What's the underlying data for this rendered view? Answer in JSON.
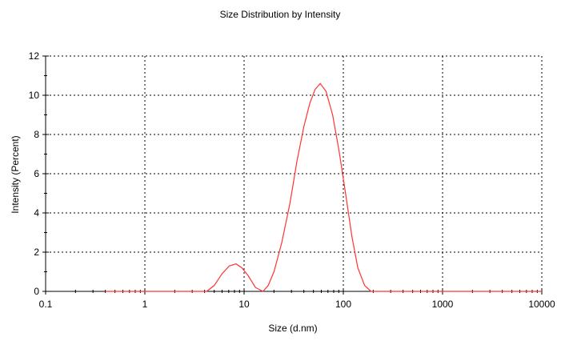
{
  "chart_data": {
    "type": "line",
    "title": "Size Distribution by Intensity",
    "xlabel": "Size (d.nm)",
    "ylabel": "Intensity (Percent)",
    "x_scale": "log",
    "xlim": [
      0.1,
      10000
    ],
    "ylim": [
      0,
      12
    ],
    "x_ticks": [
      0.1,
      1,
      10,
      100,
      1000,
      10000
    ],
    "x_tick_labels": [
      "0.1",
      "1",
      "10",
      "100",
      "1000",
      "10000"
    ],
    "y_ticks": [
      0,
      2,
      4,
      6,
      8,
      10,
      12
    ],
    "y_tick_labels": [
      "0",
      "2",
      "4",
      "6",
      "8",
      "10",
      "12"
    ],
    "grid": true,
    "series": [
      {
        "color": "#ff3333",
        "x": [
          0.4,
          0.6,
          1,
          2,
          3,
          4.2,
          5,
          6,
          7.1,
          8.3,
          9.5,
          11,
          13,
          15.5,
          17.5,
          20,
          24,
          29,
          34,
          40,
          46,
          52,
          58.5,
          67,
          78,
          91,
          106,
          122,
          140,
          164,
          190,
          220,
          300,
          500,
          1000,
          3000,
          10000
        ],
        "y": [
          0,
          0,
          0,
          0,
          0,
          0,
          0.3,
          0.9,
          1.3,
          1.4,
          1.2,
          0.8,
          0.2,
          0,
          0.3,
          1.0,
          2.5,
          4.5,
          6.6,
          8.4,
          9.6,
          10.3,
          10.6,
          10.2,
          9.0,
          7.1,
          4.9,
          2.8,
          1.2,
          0.3,
          0,
          0,
          0,
          0,
          0,
          0,
          0
        ]
      }
    ]
  }
}
